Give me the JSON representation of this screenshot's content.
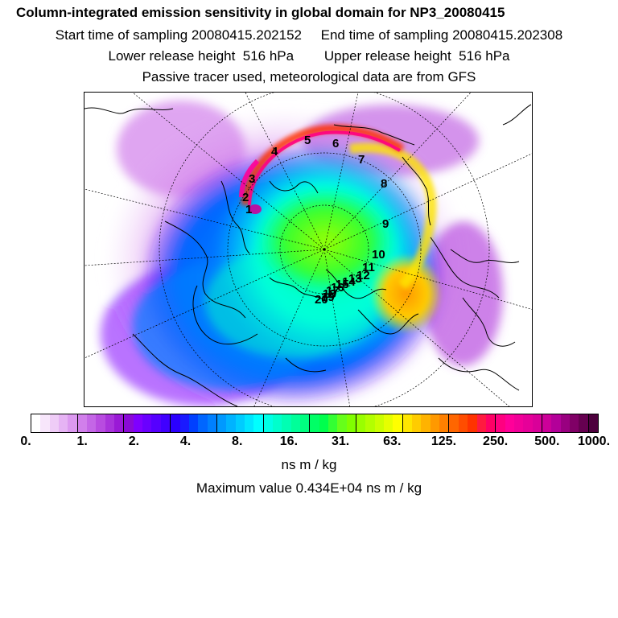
{
  "chart_data": {
    "type": "heatmap",
    "title": "Column-integrated emission sensitivity in global domain for NP3_20080415",
    "subtitle_lines": [
      "Start time of sampling 20080415.202152     End time of sampling 20080415.202308",
      "Lower release height  516 hPa        Upper release height  516 hPa",
      "Passive tracer used, meteorological data are from GFS"
    ],
    "projection": "north polar stereographic",
    "colorbar": {
      "tick_labels": [
        "0.",
        "1.",
        "2.",
        "4.",
        "8.",
        "16.",
        "31.",
        "63.",
        "125.",
        "250.",
        "500.",
        "1000."
      ],
      "colors": [
        "#ffffff",
        "#f7e6fb",
        "#efccf7",
        "#e6b3f4",
        "#dc99f0",
        "#d17feb",
        "#c466e6",
        "#b84ce0",
        "#a933db",
        "#9a1ad6",
        "#8a0ad6",
        "#7f00ff",
        "#6a00ff",
        "#5500ff",
        "#4000ff",
        "#2b00ff",
        "#1a1aff",
        "#0040ff",
        "#0066ff",
        "#0080ff",
        "#0099ff",
        "#00b3ff",
        "#00ccff",
        "#00e6ff",
        "#00ffff",
        "#00ffe6",
        "#00ffcc",
        "#00ffb3",
        "#00ff99",
        "#00ff80",
        "#00ff66",
        "#00ff4d",
        "#33ff33",
        "#66ff1a",
        "#80ff00",
        "#99ff00",
        "#b3ff00",
        "#ccff00",
        "#e6ff00",
        "#ffff00",
        "#ffe600",
        "#ffcc00",
        "#ffb300",
        "#ff9900",
        "#ff8000",
        "#ff6600",
        "#ff4d00",
        "#ff3300",
        "#ff1a40",
        "#ff0066",
        "#ff0080",
        "#ff0099",
        "#f20099",
        "#e60099",
        "#d90099",
        "#cc0099",
        "#b30099",
        "#990080",
        "#800066",
        "#660050",
        "#4d003d"
      ]
    },
    "unit_label": "ns m / kg",
    "max_value_label": "Maximum value  0.434E+04 ns m / kg",
    "trajectory_labels": [
      "1",
      "2",
      "3",
      "4",
      "5",
      "6",
      "7",
      "8",
      "9",
      "10",
      "11",
      "12",
      "13",
      "14",
      "15",
      "16",
      "17",
      "18",
      "19",
      "20"
    ]
  }
}
